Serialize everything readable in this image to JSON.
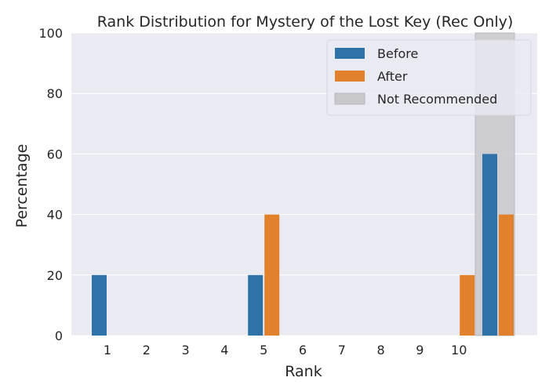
{
  "chart_data": {
    "type": "bar",
    "title": "Rank Distribution for Mystery of the Lost Key (Rec Only)",
    "xlabel": "Rank",
    "ylabel": "Percentage",
    "ylim": [
      0,
      100
    ],
    "yticks": [
      0,
      20,
      40,
      60,
      80,
      100
    ],
    "categories": [
      "1",
      "2",
      "3",
      "4",
      "5",
      "6",
      "7",
      "8",
      "9",
      "10",
      ""
    ],
    "series": [
      {
        "name": "Before",
        "color": "#2f72a8",
        "values": [
          20,
          0,
          0,
          0,
          20,
          0,
          0,
          0,
          0,
          0,
          60
        ]
      },
      {
        "name": "After",
        "color": "#e2812b",
        "values": [
          0,
          0,
          0,
          0,
          40,
          0,
          0,
          0,
          0,
          20,
          40
        ]
      }
    ],
    "shaded_region": {
      "name": "Not Recommended",
      "category_index": 10,
      "color": "#c8c8cc"
    },
    "grid": true,
    "legend": "top-right",
    "background": "#eaeaf2"
  }
}
